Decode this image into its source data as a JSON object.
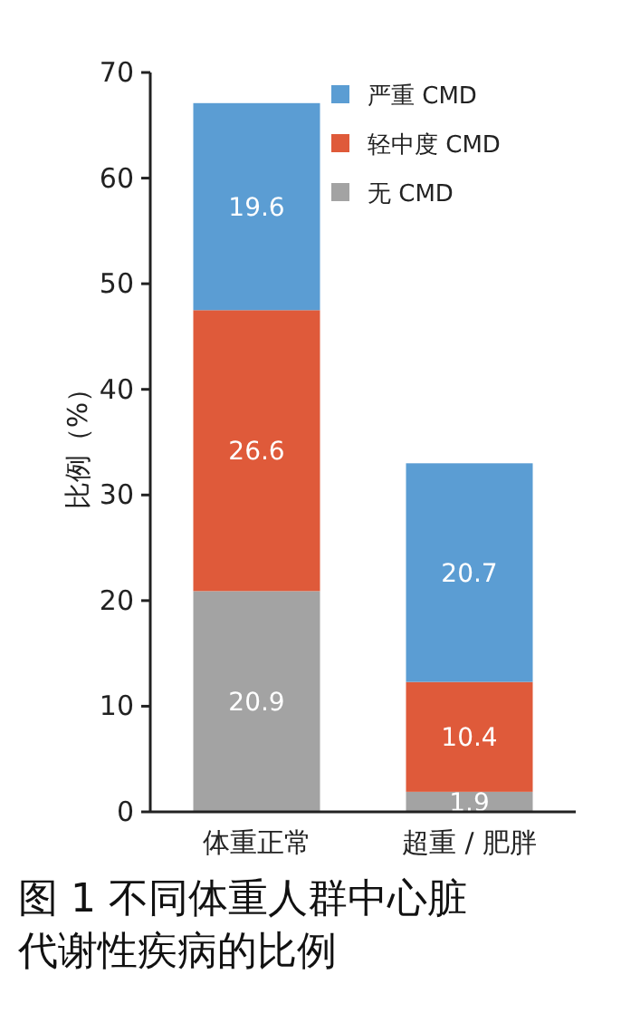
{
  "chart_data": {
    "type": "bar",
    "stacked": true,
    "title": "图 1 不同体重人群中心脏代谢性疾病的比例",
    "ylabel": "比例（%）",
    "categories": [
      "体重正常",
      "超重 / 肥胖"
    ],
    "series": [
      {
        "name": "无 CMD",
        "color": "#a3a3a3",
        "values": [
          20.9,
          1.9
        ]
      },
      {
        "name": "轻中度 CMD",
        "color": "#df5a3a",
        "values": [
          26.6,
          10.4
        ]
      },
      {
        "name": "严重 CMD",
        "color": "#5b9dd3",
        "values": [
          19.6,
          20.7
        ]
      }
    ],
    "ylim": [
      0,
      70
    ],
    "yticks": [
      0,
      10,
      20,
      30,
      40,
      50,
      60,
      70
    ],
    "data_labels": true,
    "legend": "top right",
    "grid": false
  }
}
